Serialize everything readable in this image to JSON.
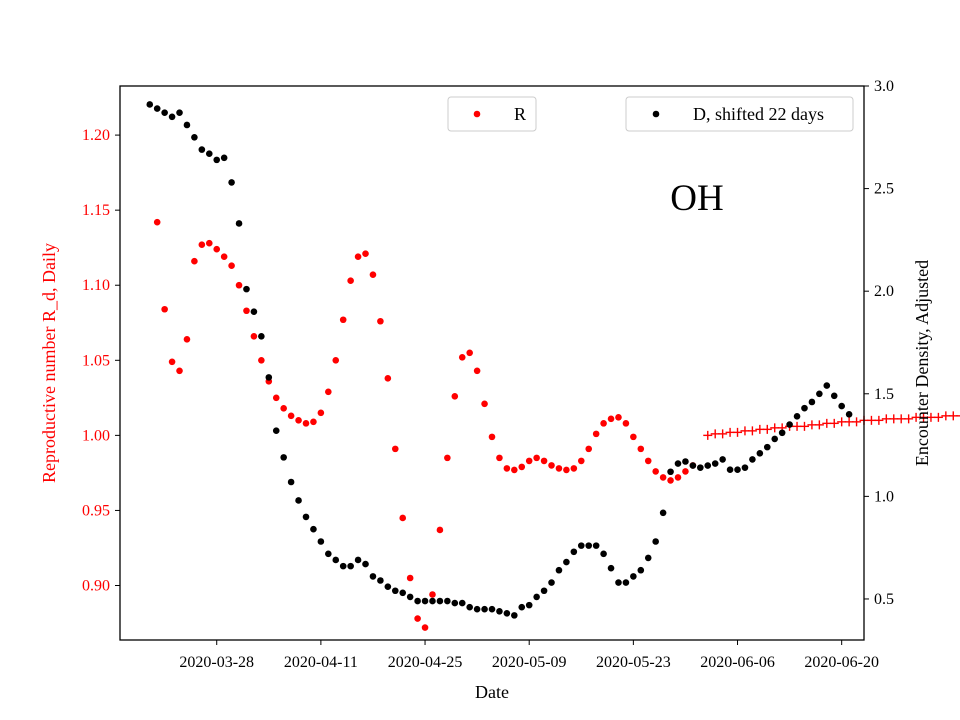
{
  "chart_data": {
    "type": "scatter",
    "annotation": "OH",
    "xlabel": "Date",
    "ylabel_left": "Reproductive number R_d, Daily",
    "ylabel_right": "Encounter Density, Adjusted",
    "xlim": [
      "2020-03-15",
      "2020-06-23"
    ],
    "ylim_left": [
      0.8637,
      1.2327
    ],
    "ylim_right": [
      0.3,
      3.0
    ],
    "x_ticks": [
      "2020-03-28",
      "2020-04-11",
      "2020-04-25",
      "2020-05-09",
      "2020-05-23",
      "2020-06-06",
      "2020-06-20"
    ],
    "y_ticks_left": [
      0.9,
      0.95,
      1.0,
      1.05,
      1.1,
      1.15,
      1.2
    ],
    "y_ticks_right": [
      0.5,
      1.0,
      1.5,
      2.0,
      2.5,
      3.0
    ],
    "colors": {
      "R": "#ff0000",
      "D": "#000000",
      "left_axis_text": "#ff0000",
      "right_axis_text": "#000000"
    },
    "series": [
      {
        "name": "R",
        "axis": "left",
        "marker": "dot",
        "color": "#ff0000",
        "start_date": "2020-03-20",
        "values": [
          1.142,
          1.084,
          1.049,
          1.043,
          1.064,
          1.116,
          1.127,
          1.128,
          1.124,
          1.119,
          1.113,
          1.1,
          1.083,
          1.066,
          1.05,
          1.036,
          1.025,
          1.018,
          1.013,
          1.01,
          1.008,
          1.009,
          1.015,
          1.029,
          1.05,
          1.077,
          1.103,
          1.119,
          1.121,
          1.107,
          1.076,
          1.038,
          0.991,
          0.945,
          0.905,
          0.878,
          0.872,
          0.894,
          0.937,
          0.985,
          1.026,
          1.052,
          1.055,
          1.043,
          1.021,
          0.999,
          0.985,
          0.978,
          0.977,
          0.979,
          0.983,
          0.985,
          0.983,
          0.98,
          0.978,
          0.977,
          0.978,
          0.983,
          0.991,
          1.001,
          1.008,
          1.011,
          1.012,
          1.008,
          0.999,
          0.991,
          0.983,
          0.976,
          0.972,
          0.97,
          0.972,
          0.976,
          0.98
        ]
      },
      {
        "name": "R_projection",
        "axis": "left",
        "marker": "plus",
        "color": "#ff0000",
        "start_date": "2020-06-02",
        "values": [
          1.0,
          1.001,
          1.001,
          1.002,
          1.002,
          1.003,
          1.003,
          1.004,
          1.004,
          1.005,
          1.005,
          1.006,
          1.006,
          1.006,
          1.007,
          1.007,
          1.008,
          1.008,
          1.009,
          1.009,
          1.009,
          1.01,
          1.01,
          1.01,
          1.011,
          1.011,
          1.011,
          1.011,
          1.012,
          1.012,
          1.012,
          1.012,
          1.013,
          1.013,
          1.013,
          1.013,
          1.013,
          1.013,
          1.013
        ]
      },
      {
        "name": "D, shifted 22 days",
        "axis": "right",
        "marker": "dot",
        "color": "#000000",
        "start_date": "2020-03-19",
        "values": [
          2.91,
          2.89,
          2.87,
          2.85,
          2.87,
          2.81,
          2.75,
          2.69,
          2.67,
          2.64,
          2.65,
          2.53,
          2.33,
          2.01,
          1.9,
          1.78,
          1.58,
          1.32,
          1.19,
          1.07,
          0.98,
          0.9,
          0.84,
          0.78,
          0.72,
          0.69,
          0.66,
          0.66,
          0.69,
          0.67,
          0.61,
          0.59,
          0.56,
          0.54,
          0.53,
          0.51,
          0.49,
          0.49,
          0.49,
          0.49,
          0.49,
          0.48,
          0.48,
          0.46,
          0.45,
          0.45,
          0.45,
          0.44,
          0.43,
          0.42,
          0.46,
          0.47,
          0.51,
          0.54,
          0.58,
          0.64,
          0.68,
          0.73,
          0.76,
          0.76,
          0.76,
          0.72,
          0.65,
          0.58,
          0.58,
          0.61,
          0.64,
          0.7,
          0.78,
          0.92,
          1.12,
          1.16,
          1.17,
          1.15,
          1.14,
          1.15,
          1.16,
          1.18,
          1.13,
          1.13,
          1.14,
          1.18,
          1.21,
          1.24,
          1.28,
          1.31,
          1.35,
          1.39,
          1.43,
          1.46,
          1.5,
          1.54,
          1.49,
          1.44,
          1.4
        ]
      }
    ],
    "legends": [
      {
        "label": "R",
        "color": "#ff0000",
        "placement": "top-center"
      },
      {
        "label": "D, shifted 22 days",
        "color": "#000000",
        "placement": "top-right"
      }
    ],
    "grid": false
  }
}
